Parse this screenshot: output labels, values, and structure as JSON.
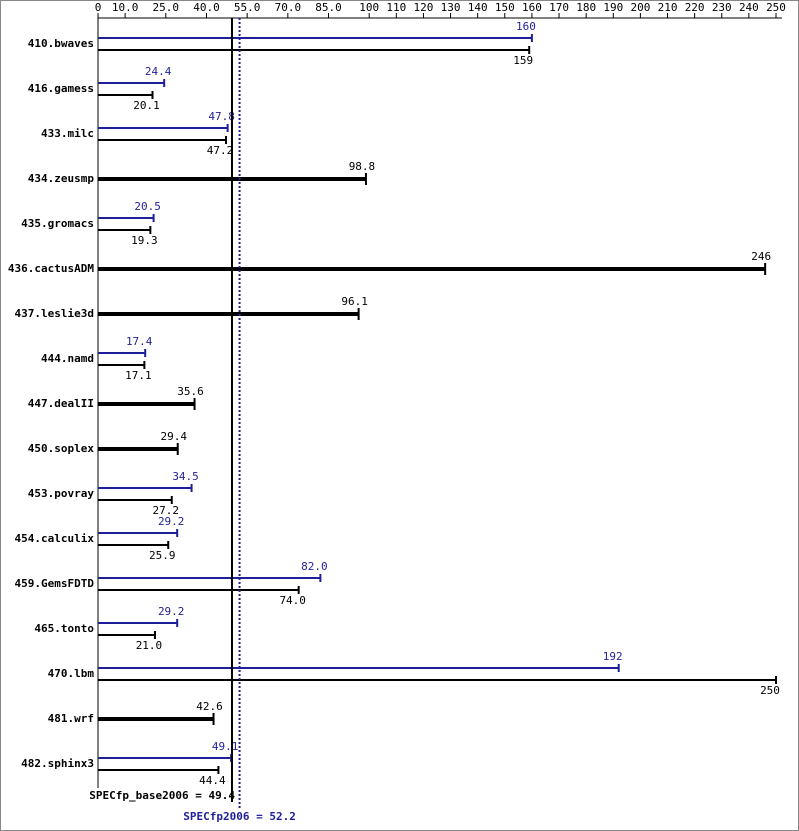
{
  "chart_data": {
    "type": "bar",
    "orientation": "horizontal",
    "categories": [
      "410.bwaves",
      "416.gamess",
      "433.milc",
      "434.zeusmp",
      "435.gromacs",
      "436.cactusADM",
      "437.leslie3d",
      "444.namd",
      "447.dealII",
      "450.soplex",
      "453.povray",
      "454.calculix",
      "459.GemsFDTD",
      "465.tonto",
      "470.lbm",
      "481.wrf",
      "482.sphinx3"
    ],
    "series": [
      {
        "color": "#1f1f99",
        "values": [
          160,
          24.4,
          47.8,
          null,
          20.5,
          null,
          null,
          17.4,
          null,
          null,
          34.5,
          29.2,
          82.0,
          29.2,
          192,
          null,
          49.1
        ],
        "value_labels": [
          "160",
          "24.4",
          "47.8",
          null,
          "20.5",
          null,
          null,
          "17.4",
          null,
          null,
          "34.5",
          "29.2",
          "82.0",
          "29.2",
          "192",
          null,
          "49.1"
        ]
      },
      {
        "color": "#000000",
        "values": [
          159,
          20.1,
          47.2,
          98.8,
          19.3,
          246,
          96.1,
          17.1,
          35.6,
          29.4,
          27.2,
          25.9,
          74.0,
          21.0,
          250,
          42.6,
          44.4
        ],
        "value_labels": [
          "159",
          "20.1",
          "47.2",
          "98.8",
          "19.3",
          "246",
          "96.1",
          "17.1",
          "35.6",
          "29.4",
          "27.2",
          "25.9",
          "74.0",
          "21.0",
          "250",
          "42.6",
          "44.4"
        ]
      }
    ],
    "xlim": [
      0,
      250
    ],
    "xticks": [
      0,
      {
        "value": 10,
        "label": "10.0"
      },
      {
        "value": 25,
        "label": "25.0"
      },
      {
        "value": 40,
        "label": "40.0"
      },
      {
        "value": 55,
        "label": "55.0"
      },
      {
        "value": 70,
        "label": "70.0"
      },
      {
        "value": 85,
        "label": "85.0"
      },
      100,
      110,
      120,
      130,
      140,
      150,
      160,
      170,
      180,
      190,
      200,
      210,
      220,
      230,
      240,
      250
    ],
    "base_metric": {
      "label": "SPECfp_base2006 = 49.4",
      "value": 49.4,
      "color": "#000000"
    },
    "peak_metric": {
      "label": "SPECfp2006 = 52.2",
      "value": 52.2,
      "color": "#1f1f99"
    }
  }
}
